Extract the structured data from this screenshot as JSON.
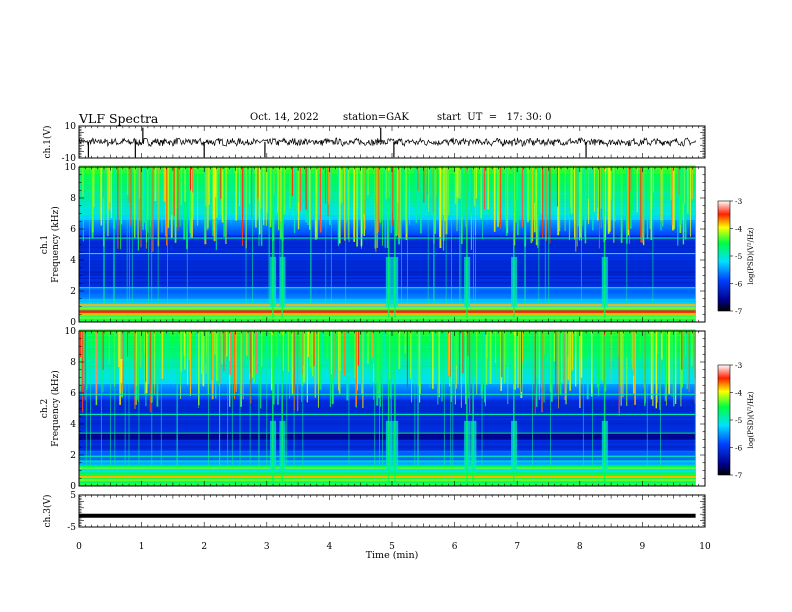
{
  "header": {
    "title": "VLF Spectra",
    "date": "Oct. 14, 2022",
    "station": "station=GAK",
    "start": "start  UT  =   17: 30: 0"
  },
  "chart_data": [
    {
      "type": "line",
      "ylabel": "ch.1(V)",
      "ylim": [
        -10,
        10
      ],
      "y_ticks": [
        "10",
        "-10"
      ],
      "description_values": {
        "baseline": 0,
        "noise_range": [
          -3,
          3
        ],
        "spikes_at_min": [
          0.15,
          0.9,
          1.02,
          2.0,
          2.97,
          4.82,
          5.03,
          8.1
        ]
      }
    },
    {
      "type": "heatmap",
      "ylabel": "ch.1\nFrequency  (kHz)",
      "ylim": [
        0,
        10
      ],
      "y_ticks": [
        "0",
        "2",
        "4",
        "6",
        "8",
        "10"
      ],
      "colorbar": {
        "label": "log(PSD)(V²/Hz)",
        "range": [
          -7,
          -3
        ],
        "ticks": [
          "-3",
          "-4",
          "-5",
          "-6",
          "-7"
        ]
      },
      "bands_khz": [
        0.3,
        0.6,
        0.9,
        1.1,
        2.2,
        4.4,
        5.4
      ],
      "bursts_min": [
        3.1,
        3.25,
        4.95,
        5.05,
        6.2,
        6.95,
        8.4
      ]
    },
    {
      "type": "heatmap",
      "ylabel": "ch.2\nFrequency  (kHz)",
      "ylim": [
        0,
        10
      ],
      "y_ticks": [
        "0",
        "2",
        "4",
        "6",
        "8",
        "10"
      ],
      "colorbar": {
        "label": "log(PSD)(V²/Hz)",
        "range": [
          -7,
          -3
        ],
        "ticks": [
          "-3",
          "-4",
          "-5",
          "-6",
          "-7"
        ]
      },
      "bands_khz": [
        0.4,
        0.6,
        1.2,
        1.6,
        1.9,
        3.4,
        4.6,
        5.9
      ],
      "bursts_min": [
        3.1,
        3.25,
        4.95,
        5.05,
        6.2,
        6.3,
        6.95,
        8.4
      ]
    },
    {
      "type": "line",
      "ylabel": "ch.3(V)",
      "ylim": [
        -5,
        5
      ],
      "y_ticks": [
        "5",
        "-5"
      ],
      "constant_value": -1.5
    }
  ],
  "x_axis": {
    "label": "Time  (min)",
    "range": [
      0,
      10
    ],
    "ticks": [
      "0",
      "1",
      "2",
      "3",
      "4",
      "5",
      "6",
      "7",
      "8",
      "9",
      "10"
    ],
    "data_end": 9.85
  },
  "colors": {
    "line": "#000000",
    "background": "#ffffff"
  }
}
